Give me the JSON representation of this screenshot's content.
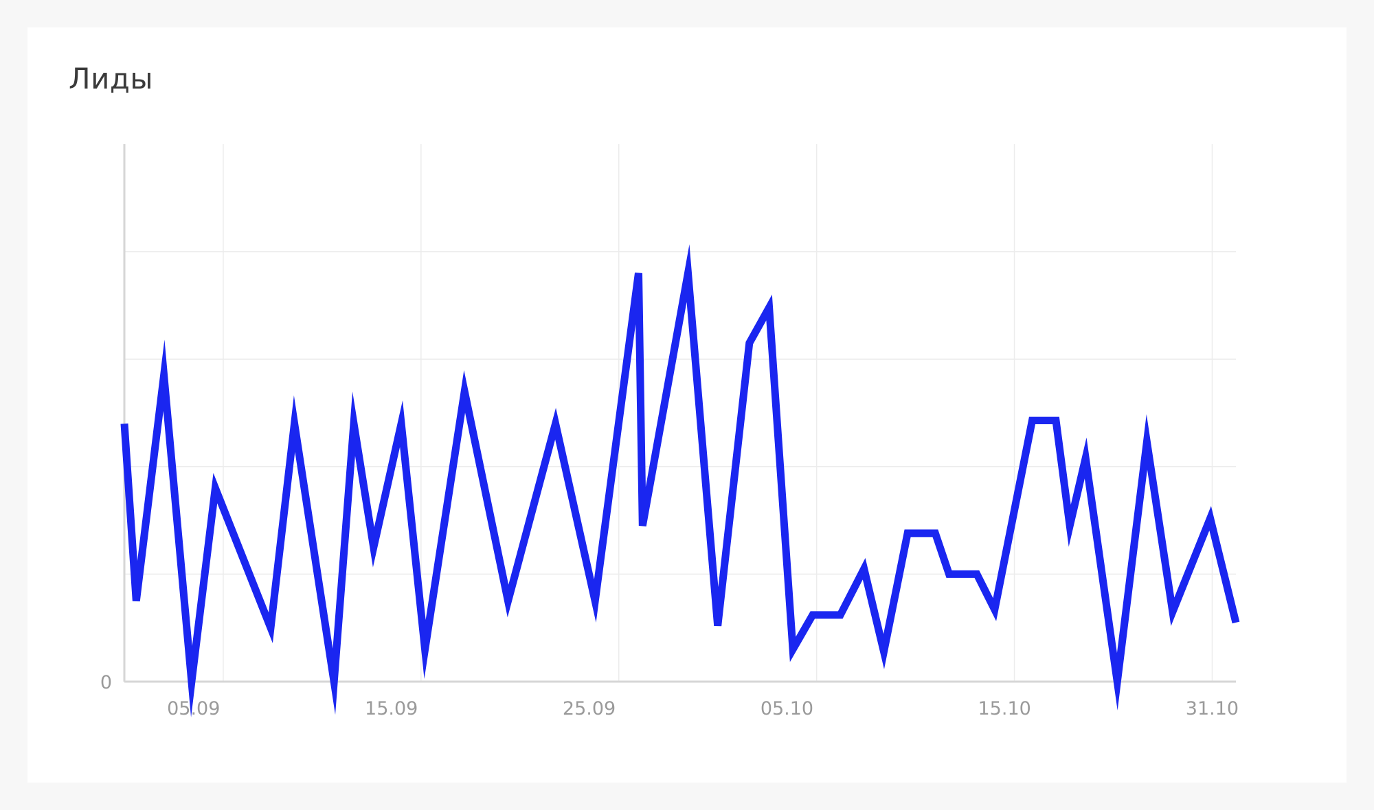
{
  "card": {
    "title": "Лиды"
  },
  "colors": {
    "line": "#1a26f0",
    "grid": "#ececec",
    "axis": "#d6d6d6",
    "tick_text": "#9a9a9a"
  },
  "chart_data": {
    "type": "line",
    "title": "Лиды",
    "xlabel": "",
    "ylabel": "",
    "ylim": [
      0,
      5
    ],
    "grid": true,
    "y_ticks": [
      {
        "value": 0,
        "label": "0"
      }
    ],
    "x_ticks": [
      {
        "x": 3.5,
        "label": "05.09"
      },
      {
        "x": 13.5,
        "label": "15.09"
      },
      {
        "x": 23.5,
        "label": "25.09"
      },
      {
        "x": 33.5,
        "label": "05.10"
      },
      {
        "x": 44.5,
        "label": "15.10"
      },
      {
        "x": 55,
        "label": "31.10"
      }
    ],
    "x_grid": [
      5,
      15,
      25,
      35,
      45,
      55
    ],
    "series": [
      {
        "values": [
          [
            0,
            2.4
          ],
          [
            0.6,
            0.75
          ],
          [
            2,
            2.85
          ],
          [
            3.4,
            0
          ],
          [
            4.6,
            1.8
          ],
          [
            7.4,
            0.5
          ],
          [
            8.6,
            2.4
          ],
          [
            10.6,
            0
          ],
          [
            11.6,
            2.4
          ],
          [
            12.6,
            1.25
          ],
          [
            14,
            2.4
          ],
          [
            15.2,
            0.3
          ],
          [
            17.2,
            2.7
          ],
          [
            19.4,
            0.75
          ],
          [
            21.8,
            2.4
          ],
          [
            23.8,
            0.75
          ],
          [
            26,
            3.8
          ],
          [
            26.2,
            1.45
          ],
          [
            28.5,
            3.8
          ],
          [
            30,
            0.52
          ],
          [
            31.6,
            3.15
          ],
          [
            32.6,
            3.48
          ],
          [
            33.8,
            0.3
          ],
          [
            34.8,
            0.62
          ],
          [
            36.2,
            0.62
          ],
          [
            37.4,
            1.05
          ],
          [
            38.4,
            0.28
          ],
          [
            39.6,
            1.38
          ],
          [
            41,
            1.38
          ],
          [
            41.7,
            1
          ],
          [
            43.1,
            1
          ],
          [
            44,
            0.67
          ],
          [
            45.9,
            2.43
          ],
          [
            47.1,
            2.43
          ],
          [
            47.8,
            1.45
          ],
          [
            48.6,
            2.08
          ],
          [
            50.2,
            0
          ],
          [
            51.7,
            2.23
          ],
          [
            53,
            0.65
          ],
          [
            54.9,
            1.52
          ],
          [
            56.2,
            0.55
          ]
        ]
      }
    ]
  }
}
